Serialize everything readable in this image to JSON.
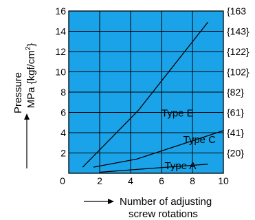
{
  "chart_data": {
    "type": "line",
    "xlim": [
      0,
      10
    ],
    "ylim": [
      0,
      16
    ],
    "x_ticks": [
      "0",
      "2",
      "4",
      "6",
      "8",
      "10"
    ],
    "y_ticks": [
      "2",
      "4",
      "6",
      "8",
      "10",
      "12",
      "14",
      "16"
    ],
    "y_secondary_ticks": [
      "{20}",
      "{41}",
      "{61}",
      "{82}",
      "{102}",
      "{122}",
      "{143}",
      "{163"
    ],
    "ylabel_line1": "Pressure",
    "ylabel_line2": "MPa {kgf/cm",
    "ylabel_sup": "2",
    "ylabel_close": "}",
    "xlabel_line1": "Number of adjusting",
    "xlabel_line2": "screw rotations",
    "grid": true,
    "colors": {
      "plot_background": "#1aa3e8",
      "grid": "#000000",
      "line": "#000000"
    },
    "series": [
      {
        "name": "Type E",
        "x": [
          0.9,
          4.5,
          9.0
        ],
        "y": [
          0.6,
          6.2,
          14.9
        ]
      },
      {
        "name": "Type C",
        "x": [
          1.6,
          4.4,
          10.0
        ],
        "y": [
          0.6,
          1.4,
          4.2
        ]
      },
      {
        "name": "Type A",
        "x": [
          2.0,
          9.0
        ],
        "y": [
          0.1,
          0.9
        ]
      }
    ],
    "annotations": [
      {
        "text": "Type E",
        "series": "Type E"
      },
      {
        "text": "Type C",
        "series": "Type C"
      },
      {
        "text": "Type A",
        "series": "Type A"
      }
    ]
  }
}
